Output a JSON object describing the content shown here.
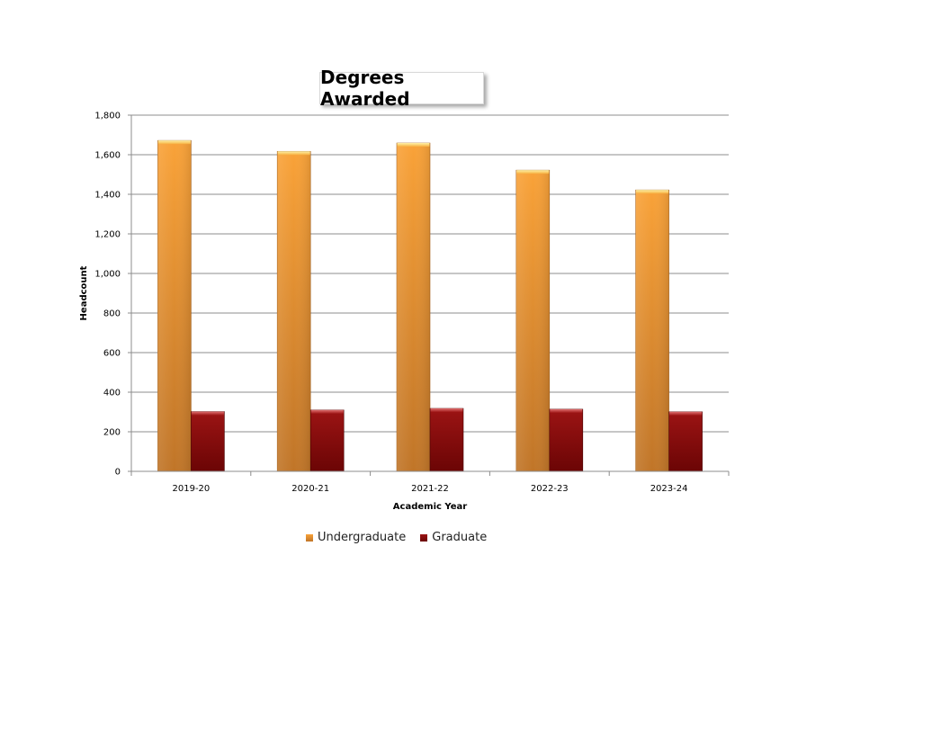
{
  "chart_data": {
    "type": "bar",
    "title": "Degrees Awarded",
    "xlabel": "Academic Year",
    "ylabel": "Headcount",
    "categories": [
      "2019-20",
      "2020-21",
      "2021-22",
      "2022-23",
      "2023-24"
    ],
    "series": [
      {
        "name": "Undergraduate",
        "values": [
          1672,
          1617,
          1659,
          1522,
          1422
        ],
        "color": "#f0962e"
      },
      {
        "name": "Graduate",
        "values": [
          302,
          310,
          318,
          314,
          301
        ],
        "color": "#8b0b0b"
      }
    ],
    "ylim": [
      0,
      1800
    ],
    "yticks": [
      "0",
      "200",
      "400",
      "600",
      "800",
      "1,000",
      "1,200",
      "1,400",
      "1,600",
      "1,800"
    ],
    "grid": true,
    "legend_position": "bottom"
  }
}
